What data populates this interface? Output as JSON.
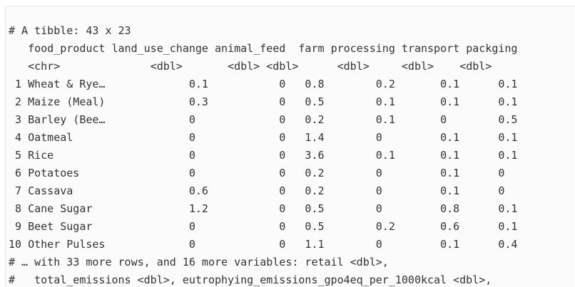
{
  "console": {
    "header": "# A tibble: 43 x 23",
    "columns": [
      {
        "name": "food_product",
        "type": "<chr>"
      },
      {
        "name": "land_use_change",
        "type": "<dbl>"
      },
      {
        "name": "animal_feed",
        "type": "<dbl>"
      },
      {
        "name": "farm",
        "type": "<dbl>"
      },
      {
        "name": "processing",
        "type": "<dbl>"
      },
      {
        "name": "transport",
        "type": "<dbl>"
      },
      {
        "name": "packging",
        "type": "<dbl>"
      }
    ],
    "rows": [
      {
        "index": "1",
        "food_product": "Wheat & Rye…",
        "land_use_change": "0.1",
        "animal_feed": "0",
        "farm": "0.8",
        "processing": "0.2",
        "transport": "0.1",
        "packging": "0.1"
      },
      {
        "index": "2",
        "food_product": "Maize (Meal)",
        "land_use_change": "0.3",
        "animal_feed": "0",
        "farm": "0.5",
        "processing": "0.1",
        "transport": "0.1",
        "packging": "0.1"
      },
      {
        "index": "3",
        "food_product": "Barley (Bee…",
        "land_use_change": "0",
        "animal_feed": "0",
        "farm": "0.2",
        "processing": "0.1",
        "transport": "0",
        "packging": "0.5"
      },
      {
        "index": "4",
        "food_product": "Oatmeal",
        "land_use_change": "0",
        "animal_feed": "0",
        "farm": "1.4",
        "processing": "0",
        "transport": "0.1",
        "packging": "0.1"
      },
      {
        "index": "5",
        "food_product": "Rice",
        "land_use_change": "0",
        "animal_feed": "0",
        "farm": "3.6",
        "processing": "0.1",
        "transport": "0.1",
        "packging": "0.1"
      },
      {
        "index": "6",
        "food_product": "Potatoes",
        "land_use_change": "0",
        "animal_feed": "0",
        "farm": "0.2",
        "processing": "0",
        "transport": "0.1",
        "packging": "0"
      },
      {
        "index": "7",
        "food_product": "Cassava",
        "land_use_change": "0.6",
        "animal_feed": "0",
        "farm": "0.2",
        "processing": "0",
        "transport": "0.1",
        "packging": "0"
      },
      {
        "index": "8",
        "food_product": "Cane Sugar",
        "land_use_change": "1.2",
        "animal_feed": "0",
        "farm": "0.5",
        "processing": "0",
        "transport": "0.8",
        "packging": "0.1"
      },
      {
        "index": "9",
        "food_product": "Beet Sugar",
        "land_use_change": "0",
        "animal_feed": "0",
        "farm": "0.5",
        "processing": "0.2",
        "transport": "0.6",
        "packging": "0.1"
      },
      {
        "index": "10",
        "food_product": "Other Pulses",
        "land_use_change": "0",
        "animal_feed": "0",
        "farm": "1.1",
        "processing": "0",
        "transport": "0.1",
        "packging": "0.4"
      }
    ],
    "footer": [
      "# … with 33 more rows, and 16 more variables: retail <dbl>,",
      "#   total_emissions <dbl>, eutrophying_emissions_gpo4eq_per_1000kcal <dbl>,"
    ]
  }
}
